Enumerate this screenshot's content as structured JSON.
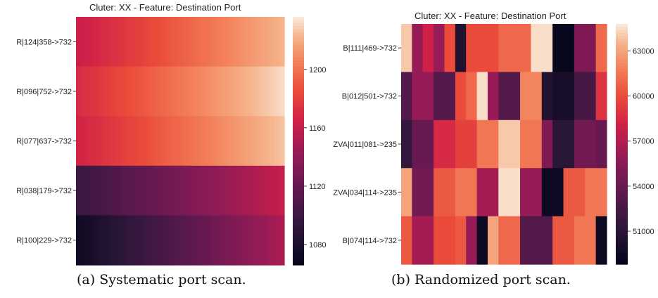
{
  "chart_data": [
    {
      "type": "heatmap",
      "title": "Cluter: XX - Feature: Destination Port",
      "caption": "(a) Systematic port scan.",
      "rows": [
        "R|124|358->732",
        "R|096|752->732",
        "R|077|637->732",
        "R|038|179->732",
        "R|100|229->732"
      ],
      "columns": 60,
      "row_ranges": [
        [
          1162,
          1222
        ],
        [
          1170,
          1232
        ],
        [
          1166,
          1226
        ],
        [
          1098,
          1160
        ],
        [
          1074,
          1150
        ]
      ],
      "colorbar": {
        "ticks": [
          1080,
          1120,
          1160,
          1200
        ],
        "min": 1066,
        "max": 1236
      },
      "grid": false
    },
    {
      "type": "heatmap",
      "title": "Cluter: XX - Feature: Destination Port",
      "caption": "(b) Randomized port scan.",
      "rows": [
        "B|111|469->732",
        "B|012|501->732",
        "ZVA|011|081->235",
        "ZVA|034|114->235",
        "B|074|114->732"
      ],
      "values": [
        [
          64000,
          56000,
          58000,
          56000,
          60000,
          50500,
          60000,
          60000,
          60000,
          61000,
          61000,
          61000,
          64500,
          64500,
          49000,
          49000,
          55000,
          55000,
          61000
        ],
        [
          53000,
          56000,
          56000,
          53000,
          53000,
          60000,
          61000,
          64500,
          56000,
          53000,
          53000,
          62000,
          62000,
          50500,
          50000,
          50000,
          52500,
          52500,
          59000
        ],
        [
          51500,
          54000,
          54000,
          58500,
          58500,
          59500,
          59500,
          61500,
          61500,
          64000,
          64000,
          61500,
          61500,
          55000,
          51000,
          51000,
          54500,
          54500,
          54000
        ],
        [
          63000,
          54500,
          54500,
          60500,
          60500,
          61500,
          61500,
          56500,
          56500,
          64500,
          64500,
          56000,
          56000,
          49500,
          49500,
          60500,
          60500,
          61500,
          61500
        ],
        [
          60500,
          56500,
          56500,
          60000,
          60000,
          60500,
          56000,
          49500,
          63000,
          61000,
          61000,
          53000,
          53000,
          53000,
          60500,
          60500,
          61500,
          61500,
          49500
        ]
      ],
      "colorbar": {
        "ticks": [
          51000,
          54000,
          57000,
          60000,
          63000
        ],
        "min": 48800,
        "max": 64800
      },
      "grid": false
    }
  ]
}
